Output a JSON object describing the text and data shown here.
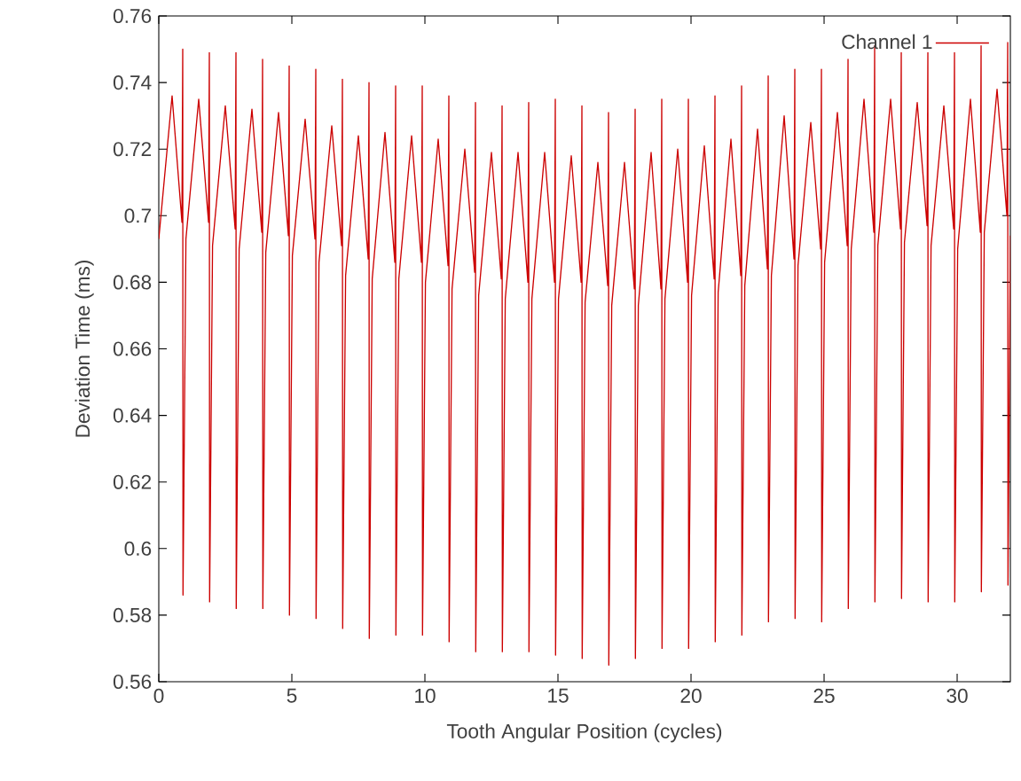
{
  "chart_data": {
    "type": "line",
    "xlabel": "Tooth Angular Position (cycles)",
    "ylabel": "Deviation Time (ms)",
    "xlim": [
      0,
      32
    ],
    "ylim": [
      0.56,
      0.76
    ],
    "xticks": [
      0,
      5,
      10,
      15,
      20,
      25,
      30
    ],
    "yticks": [
      0.56,
      0.58,
      0.6,
      0.62,
      0.64,
      0.66,
      0.68,
      0.7,
      0.72,
      0.74,
      0.76
    ],
    "grid": false,
    "legend": "top right",
    "series": [
      {
        "name": "Channel 1",
        "color": "#cc0000",
        "x": [
          0,
          0.5,
          0.87,
          0.9,
          0.91,
          1.02,
          1.5,
          1.87,
          1.9,
          1.91,
          2.02,
          2.5,
          2.87,
          2.9,
          2.91,
          3.02,
          3.5,
          3.87,
          3.9,
          3.91,
          4.02,
          4.5,
          4.87,
          4.9,
          4.91,
          5.02,
          5.5,
          5.87,
          5.9,
          5.91,
          6.02,
          6.5,
          6.87,
          6.9,
          6.91,
          7.02,
          7.5,
          7.87,
          7.9,
          7.91,
          8.02,
          8.5,
          8.87,
          8.9,
          8.91,
          9.02,
          9.5,
          9.87,
          9.9,
          9.91,
          10.02,
          10.5,
          10.87,
          10.9,
          10.91,
          11.02,
          11.5,
          11.87,
          11.9,
          11.91,
          12.02,
          12.5,
          12.87,
          12.9,
          12.91,
          13.02,
          13.5,
          13.87,
          13.9,
          13.91,
          14.02,
          14.5,
          14.87,
          14.9,
          14.91,
          15.02,
          15.5,
          15.87,
          15.9,
          15.91,
          16.02,
          16.5,
          16.87,
          16.9,
          16.91,
          17.02,
          17.5,
          17.87,
          17.9,
          17.91,
          18.02,
          18.5,
          18.87,
          18.9,
          18.91,
          19.02,
          19.5,
          19.87,
          19.9,
          19.91,
          20.02,
          20.5,
          20.87,
          20.9,
          20.91,
          21.02,
          21.5,
          21.87,
          21.9,
          21.91,
          22.02,
          22.5,
          22.87,
          22.9,
          22.91,
          23.02,
          23.5,
          23.87,
          23.9,
          23.91,
          24.02,
          24.5,
          24.87,
          24.9,
          24.91,
          25.02,
          25.5,
          25.87,
          25.9,
          25.91,
          26.02,
          26.5,
          26.87,
          26.9,
          26.91,
          27.02,
          27.5,
          27.87,
          27.9,
          27.91,
          28.02,
          28.5,
          28.87,
          28.9,
          28.91,
          29.02,
          29.5,
          29.87,
          29.9,
          29.91,
          30.02,
          30.5,
          30.87,
          30.9,
          30.91,
          31.02,
          31.5,
          31.87,
          31.9,
          31.91,
          32
        ],
        "values": [
          0.693,
          0.736,
          0.698,
          0.75,
          0.586,
          0.693,
          0.735,
          0.698,
          0.749,
          0.584,
          0.691,
          0.733,
          0.696,
          0.749,
          0.582,
          0.69,
          0.732,
          0.695,
          0.747,
          0.582,
          0.689,
          0.731,
          0.694,
          0.745,
          0.58,
          0.688,
          0.729,
          0.693,
          0.744,
          0.579,
          0.686,
          0.727,
          0.691,
          0.741,
          0.576,
          0.682,
          0.724,
          0.687,
          0.74,
          0.573,
          0.681,
          0.725,
          0.686,
          0.739,
          0.574,
          0.681,
          0.724,
          0.686,
          0.739,
          0.574,
          0.68,
          0.723,
          0.685,
          0.736,
          0.572,
          0.678,
          0.72,
          0.683,
          0.734,
          0.569,
          0.676,
          0.719,
          0.681,
          0.733,
          0.569,
          0.675,
          0.719,
          0.68,
          0.734,
          0.569,
          0.675,
          0.719,
          0.68,
          0.735,
          0.568,
          0.675,
          0.718,
          0.68,
          0.733,
          0.567,
          0.674,
          0.716,
          0.679,
          0.731,
          0.565,
          0.673,
          0.716,
          0.678,
          0.732,
          0.567,
          0.673,
          0.719,
          0.678,
          0.735,
          0.57,
          0.675,
          0.72,
          0.68,
          0.735,
          0.57,
          0.676,
          0.721,
          0.681,
          0.736,
          0.572,
          0.677,
          0.723,
          0.682,
          0.739,
          0.574,
          0.679,
          0.726,
          0.684,
          0.742,
          0.578,
          0.682,
          0.73,
          0.687,
          0.744,
          0.579,
          0.685,
          0.728,
          0.69,
          0.744,
          0.578,
          0.686,
          0.731,
          0.691,
          0.747,
          0.582,
          0.69,
          0.735,
          0.695,
          0.751,
          0.584,
          0.691,
          0.735,
          0.696,
          0.749,
          0.585,
          0.692,
          0.734,
          0.697,
          0.749,
          0.584,
          0.691,
          0.733,
          0.696,
          0.749,
          0.584,
          0.69,
          0.735,
          0.695,
          0.751,
          0.587,
          0.695,
          0.738,
          0.7,
          0.752,
          0.589,
          0.694
        ]
      }
    ]
  }
}
